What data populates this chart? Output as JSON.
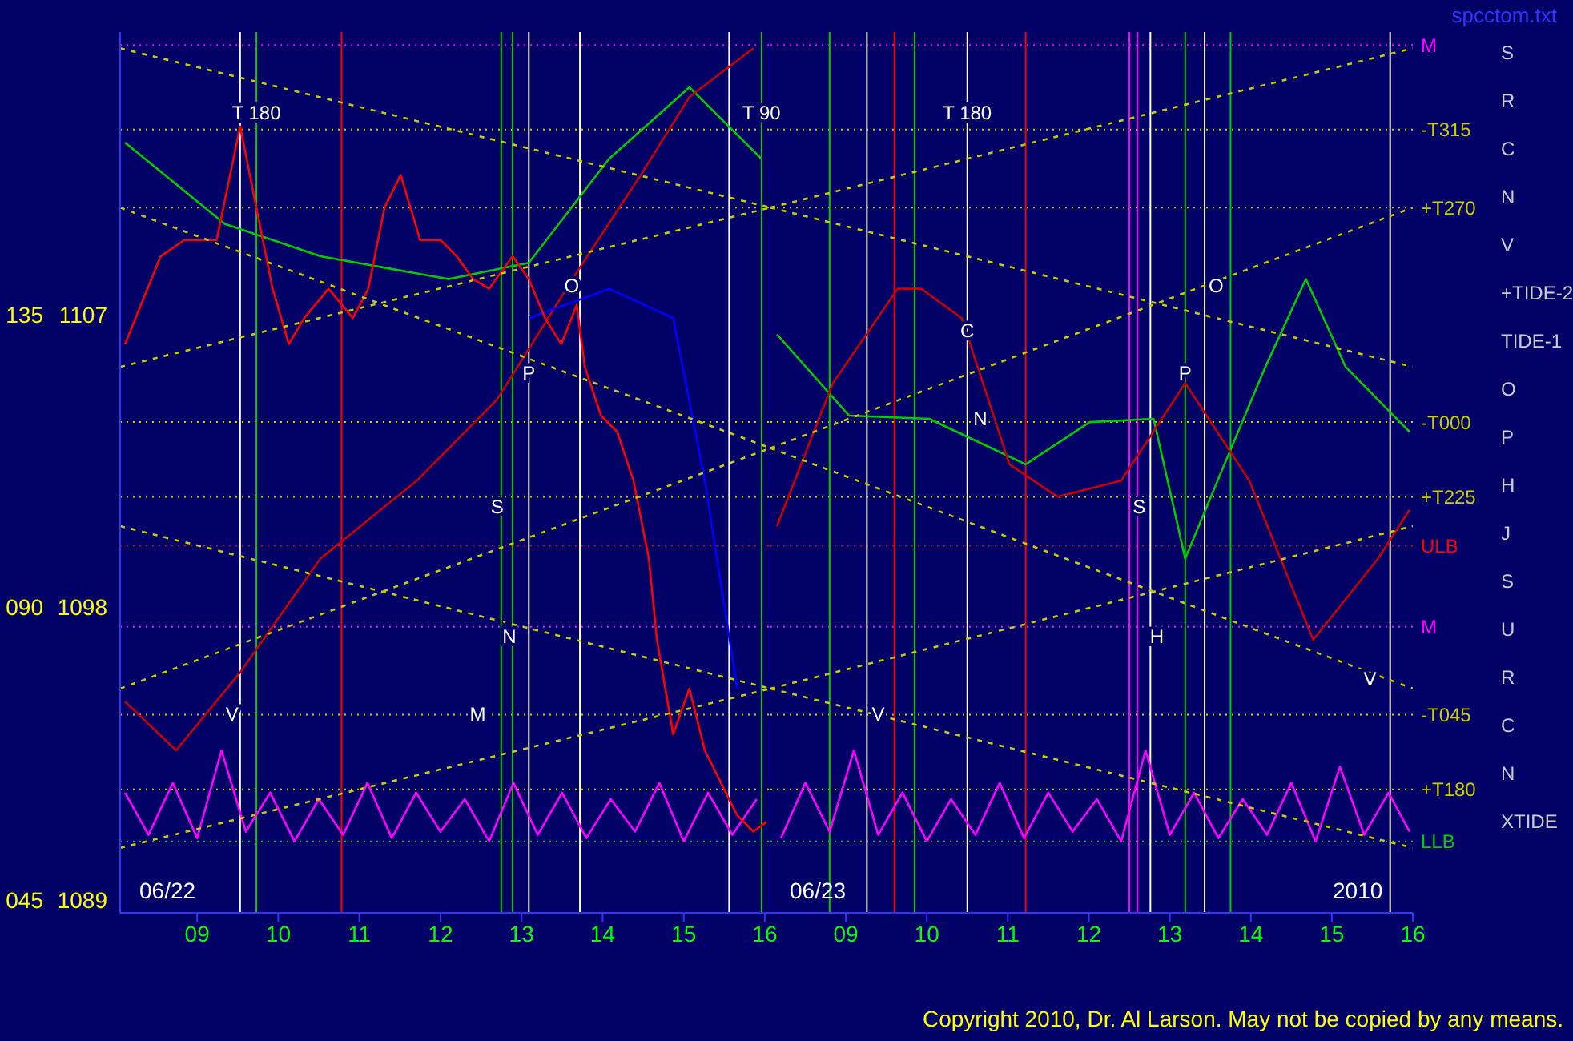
{
  "chart_data": [
    {
      "type": "line",
      "xlim": [
        8.05,
        16.07
      ],
      "ylim": [
        1088.6,
        1115.7
      ],
      "y2lim": [
        43,
        178.5
      ],
      "xticks": [
        {
          "value": 9,
          "label": "09"
        },
        {
          "value": 10,
          "label": "10"
        },
        {
          "value": 11,
          "label": "11"
        },
        {
          "value": 12,
          "label": "12"
        },
        {
          "value": 13,
          "label": "13"
        },
        {
          "value": 14,
          "label": "14"
        },
        {
          "value": 15,
          "label": "15"
        },
        {
          "value": 16,
          "label": "16"
        }
      ],
      "yticks": [
        1089,
        1098,
        1107
      ],
      "y2ticks": [
        {
          "value": 45,
          "label": "045"
        },
        {
          "value": 90,
          "label": "090"
        },
        {
          "value": 135,
          "label": "135"
        }
      ],
      "series": [
        {
          "color": "#00cc00",
          "x": [
            8.11,
            9.34,
            10.52,
            12.1,
            13.09,
            14.08,
            15.07,
            15.96
          ],
          "values": [
            1112.3,
            1109.8,
            1108.8,
            1108.1,
            1108.6,
            1111.8,
            1114.0,
            1111.8
          ]
        },
        {
          "color": "#cc0000",
          "x": [
            8.11,
            8.74,
            9.53,
            10.52,
            11.71,
            12.7,
            13.68,
            14.47,
            15.07,
            15.86
          ],
          "values": [
            1095.1,
            1093.6,
            1096.0,
            1099.5,
            1101.9,
            1104.4,
            1108.3,
            1111.3,
            1113.7,
            1115.2
          ]
        },
        {
          "color": "#0000ff",
          "x": [
            13.09,
            14.08,
            14.87,
            15.26,
            15.66
          ],
          "values": [
            1106.9,
            1107.8,
            1106.9,
            1101.9,
            1095.5
          ]
        },
        {
          "color": "#ff00ff",
          "x": [
            8.11,
            8.4,
            8.7,
            9.0,
            9.3,
            9.6,
            9.9,
            10.2,
            10.5,
            10.8,
            11.1,
            11.4,
            11.7,
            12.0,
            12.3,
            12.6,
            12.9,
            13.2,
            13.5,
            13.8,
            14.1,
            14.4,
            14.7,
            15.0,
            15.3,
            15.6,
            15.9
          ],
          "values": [
            1092.3,
            1091.0,
            1092.6,
            1090.9,
            1093.6,
            1091.1,
            1092.3,
            1090.8,
            1092.1,
            1091.0,
            1092.6,
            1090.9,
            1092.3,
            1091.1,
            1092.1,
            1090.8,
            1092.6,
            1091.0,
            1092.3,
            1090.9,
            1092.1,
            1091.1,
            1092.6,
            1090.8,
            1092.3,
            1091.0,
            1092.1
          ]
        },
        {
          "color": "#ff0000",
          "x": [
            8.11,
            8.55,
            8.84,
            9.24,
            9.53,
            9.73,
            9.93,
            10.13,
            10.32,
            10.62,
            10.92,
            11.11,
            11.31,
            11.51,
            11.75,
            12.0,
            12.2,
            12.4,
            12.6,
            12.89,
            13.09,
            13.29,
            13.49,
            13.68,
            13.78,
            13.98,
            14.18,
            14.38,
            14.57,
            14.67,
            14.87,
            15.07,
            15.26,
            15.46,
            15.66,
            15.86,
            16.02
          ],
          "values": [
            1106.1,
            1108.8,
            1109.3,
            1109.3,
            1112.8,
            1110.3,
            1107.8,
            1106.1,
            1106.9,
            1107.8,
            1106.9,
            1107.8,
            1110.3,
            1111.3,
            1109.3,
            1109.3,
            1108.8,
            1108.1,
            1107.8,
            1108.8,
            1108.1,
            1106.9,
            1106.1,
            1107.3,
            1105.4,
            1103.9,
            1103.4,
            1101.9,
            1099.5,
            1097.0,
            1094.1,
            1095.5,
            1093.6,
            1092.6,
            1091.6,
            1091.1,
            1091.4
          ]
        },
        {
          "color": "#cccc00",
          "line_style": "dashed",
          "x": [
            8.05,
            16.07
          ],
          "values": [
            1115.2,
            1110.3
          ]
        },
        {
          "color": "#cccc00",
          "line_style": "dashed",
          "x": [
            8.05,
            16.07
          ],
          "values": [
            1105.4,
            1110.3
          ]
        },
        {
          "color": "#cccc00",
          "line_style": "dashed",
          "x": [
            8.05,
            16.07
          ],
          "values": [
            1110.3,
            1102.9
          ]
        },
        {
          "color": "#cccc00",
          "line_style": "dashed",
          "x": [
            8.05,
            16.07
          ],
          "values": [
            1095.5,
            1102.9
          ]
        },
        {
          "color": "#cccc00",
          "line_style": "dashed",
          "x": [
            8.05,
            16.07
          ],
          "values": [
            1100.5,
            1095.5
          ]
        },
        {
          "color": "#cccc00",
          "line_style": "dashed",
          "x": [
            8.05,
            16.07
          ],
          "values": [
            1090.6,
            1095.5
          ]
        }
      ],
      "ref_lines": [
        {
          "axis": "y",
          "value": 1115.3,
          "color": "#ff00ff"
        },
        {
          "axis": "y",
          "value": 1112.7,
          "color": "#cccc00"
        },
        {
          "axis": "y",
          "value": 1110.3,
          "color": "#cccc00"
        },
        {
          "axis": "y",
          "value": 1103.7,
          "color": "#cccc00"
        },
        {
          "axis": "y",
          "value": 1101.4,
          "color": "#cccc00"
        },
        {
          "axis": "y",
          "value": 1099.9,
          "color": "#ff0000"
        },
        {
          "axis": "y",
          "value": 1097.4,
          "color": "#ff00ff"
        },
        {
          "axis": "y",
          "value": 1094.7,
          "color": "#cccc00"
        },
        {
          "axis": "y",
          "value": 1092.4,
          "color": "#cccc00"
        },
        {
          "axis": "y",
          "value": 1090.8,
          "color": "#00cc00"
        },
        {
          "axis": "x",
          "value": 9.73,
          "color": "#00cc00"
        },
        {
          "axis": "x",
          "value": 12.75,
          "color": "#00cc00"
        },
        {
          "axis": "x",
          "value": 12.89,
          "color": "#00cc00"
        },
        {
          "axis": "x",
          "value": 15.96,
          "color": "#00cc00"
        },
        {
          "axis": "x",
          "value": 10.78,
          "color": "#ff0000"
        },
        {
          "axis": "x",
          "value": 9.53,
          "color": "#ffffff"
        },
        {
          "axis": "x",
          "value": 13.09,
          "color": "#ffffff"
        },
        {
          "axis": "x",
          "value": 13.72,
          "color": "#ffffff"
        },
        {
          "axis": "x",
          "value": 15.56,
          "color": "#ffffff"
        }
      ],
      "annotations": [
        "06/22",
        {
          "text": "T   180",
          "x": 9.73,
          "y": 1113.2
        },
        {
          "text": "T   90",
          "x": 15.96,
          "y": 1113.2
        },
        {
          "text": "O",
          "x": 13.62,
          "y": 1107.9
        },
        {
          "text": "P",
          "x": 13.09,
          "y": 1105.2
        },
        {
          "text": "S",
          "x": 12.7,
          "y": 1101.1
        },
        {
          "text": "M",
          "x": 12.46,
          "y": 1094.7
        },
        {
          "text": "V",
          "x": 9.43,
          "y": 1094.7
        },
        {
          "text": "N",
          "x": 12.85,
          "y": 1097.1
        }
      ]
    },
    {
      "type": "line",
      "xlim": [
        8.07,
        16.0
      ],
      "ylim": [
        1088.6,
        1115.7
      ],
      "tick_labels": "x",
      "xticks": [
        {
          "value": 9,
          "label": "09"
        },
        {
          "value": 10,
          "label": "10"
        },
        {
          "value": 11,
          "label": "11"
        },
        {
          "value": 12,
          "label": "12"
        },
        {
          "value": 13,
          "label": "13"
        },
        {
          "value": 14,
          "label": "14"
        },
        {
          "value": 15,
          "label": "15"
        },
        {
          "value": 16,
          "label": "16"
        }
      ],
      "series": [
        {
          "color": "#00cc00",
          "x": [
            8.15,
            9.04,
            10.03,
            11.22,
            12.01,
            12.8,
            13.19,
            13.59,
            14.18,
            14.68,
            15.17,
            15.96
          ],
          "values": [
            1106.4,
            1103.9,
            1103.8,
            1102.4,
            1103.7,
            1103.8,
            1099.5,
            1101.9,
            1105.4,
            1108.1,
            1105.4,
            1103.4
          ]
        },
        {
          "color": "#cc0000",
          "x": [
            8.15,
            8.84,
            9.64,
            9.93,
            10.43,
            11.02,
            11.61,
            12.4,
            13.19,
            13.98,
            14.77,
            15.57,
            15.96
          ],
          "values": [
            1100.5,
            1104.9,
            1107.8,
            1107.8,
            1106.9,
            1102.4,
            1101.4,
            1101.9,
            1104.9,
            1101.9,
            1097.0,
            1099.5,
            1101.0
          ]
        },
        {
          "color": "#ff00ff",
          "x": [
            8.2,
            8.5,
            8.8,
            9.1,
            9.4,
            9.7,
            10.0,
            10.3,
            10.6,
            10.9,
            11.2,
            11.5,
            11.8,
            12.1,
            12.4,
            12.7,
            13.0,
            13.3,
            13.6,
            13.9,
            14.2,
            14.5,
            14.8,
            15.1,
            15.4,
            15.7,
            15.96
          ],
          "values": [
            1090.9,
            1092.6,
            1091.1,
            1093.6,
            1091.0,
            1092.3,
            1090.8,
            1092.1,
            1091.0,
            1092.6,
            1090.9,
            1092.3,
            1091.1,
            1092.1,
            1090.8,
            1093.6,
            1091.0,
            1092.3,
            1090.9,
            1092.1,
            1091.0,
            1092.6,
            1090.8,
            1093.1,
            1091.0,
            1092.3,
            1091.1
          ]
        },
        {
          "color": "#cccc00",
          "line_style": "dashed",
          "x": [
            8.07,
            16.0
          ],
          "values": [
            1110.3,
            1105.4
          ]
        },
        {
          "color": "#cccc00",
          "line_style": "dashed",
          "x": [
            8.07,
            16.0
          ],
          "values": [
            1110.3,
            1115.2
          ]
        },
        {
          "color": "#cccc00",
          "line_style": "dashed",
          "x": [
            8.07,
            16.0
          ],
          "values": [
            1102.9,
            1095.5
          ]
        },
        {
          "color": "#cccc00",
          "line_style": "dashed",
          "x": [
            8.07,
            16.0
          ],
          "values": [
            1102.9,
            1110.3
          ]
        },
        {
          "color": "#cccc00",
          "line_style": "dashed",
          "x": [
            8.07,
            16.0
          ],
          "values": [
            1095.5,
            1090.6
          ]
        },
        {
          "color": "#cccc00",
          "line_style": "dashed",
          "x": [
            8.07,
            16.0
          ],
          "values": [
            1095.5,
            1100.5
          ]
        }
      ],
      "ref_lines": [
        {
          "axis": "y",
          "value": 1115.3,
          "label": "M",
          "color": "#ff00ff"
        },
        {
          "axis": "y",
          "value": 1112.7,
          "label": "-T315",
          "color": "#cccc00"
        },
        {
          "axis": "y",
          "value": 1110.3,
          "label": "+T270",
          "color": "#cccc00"
        },
        {
          "axis": "y",
          "value": 1103.7,
          "label": "-T000",
          "color": "#cccc00"
        },
        {
          "axis": "y",
          "value": 1101.4,
          "label": "+T225",
          "color": "#cccc00"
        },
        {
          "axis": "y",
          "value": 1099.9,
          "label": "ULB",
          "color": "#ff0000"
        },
        {
          "axis": "y",
          "value": 1097.4,
          "label": "M",
          "color": "#ff00ff"
        },
        {
          "axis": "y",
          "value": 1094.7,
          "label": "-T045",
          "color": "#cccc00"
        },
        {
          "axis": "y",
          "value": 1092.4,
          "label": "+T180",
          "color": "#cccc00"
        },
        {
          "axis": "y",
          "value": 1090.8,
          "label": "LLB",
          "color": "#00cc00"
        },
        {
          "axis": "x",
          "value": 8.8,
          "color": "#00cc00"
        },
        {
          "axis": "x",
          "value": 9.85,
          "color": "#00cc00"
        },
        {
          "axis": "x",
          "value": 13.19,
          "color": "#00cc00"
        },
        {
          "axis": "x",
          "value": 13.75,
          "color": "#00cc00"
        },
        {
          "axis": "x",
          "value": 9.6,
          "color": "#ff0000"
        },
        {
          "axis": "x",
          "value": 11.22,
          "color": "#ff0000"
        },
        {
          "axis": "x",
          "value": 9.26,
          "color": "#ffffff"
        },
        {
          "axis": "x",
          "value": 10.5,
          "color": "#ffffff"
        },
        {
          "axis": "x",
          "value": 12.76,
          "color": "#ffffff"
        },
        {
          "axis": "x",
          "value": 13.43,
          "color": "#ffffff"
        },
        {
          "axis": "x",
          "value": 15.72,
          "color": "#ffffff"
        },
        {
          "axis": "x",
          "value": 12.5,
          "color": "#ff00ff"
        },
        {
          "axis": "x",
          "value": 12.6,
          "color": "#ff00ff"
        }
      ],
      "annotations": [
        "06/23",
        "2010",
        "spcctom.txt",
        "Copyright 2010, Dr. Al Larson. May not be copied by any means.",
        "S",
        "R",
        "C",
        "N",
        "V",
        "+TIDE-2",
        "TIDE-1",
        "O",
        "P",
        "H",
        "J",
        "S",
        "U",
        "R",
        "C",
        "N",
        "XTIDE",
        {
          "text": "T   180",
          "x": 10.5,
          "y": 1113.2
        },
        {
          "text": "O",
          "x": 13.57,
          "y": 1107.9
        },
        {
          "text": "P",
          "x": 13.19,
          "y": 1105.2
        },
        {
          "text": "N",
          "x": 10.66,
          "y": 1103.8
        },
        {
          "text": "C",
          "x": 10.5,
          "y": 1106.5
        },
        {
          "text": "S",
          "x": 12.62,
          "y": 1101.1
        },
        {
          "text": "V",
          "x": 9.4,
          "y": 1094.7
        },
        {
          "text": "H",
          "x": 12.84,
          "y": 1097.1
        },
        {
          "text": "V",
          "x": 15.47,
          "y": 1095.8
        }
      ]
    }
  ]
}
